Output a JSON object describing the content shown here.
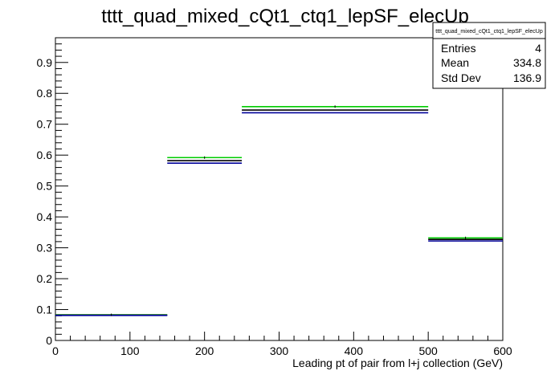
{
  "chart_data": {
    "type": "step",
    "title": "tttt_quad_mixed_cQt1_ctq1_lepSF_elecUp",
    "xlabel": "Leading pt of pair from l+j collection (GeV)",
    "ylabel": "",
    "xlim": [
      0,
      600
    ],
    "ylim": [
      0,
      0.98
    ],
    "xticks": [
      0,
      100,
      200,
      300,
      400,
      500,
      600
    ],
    "xtick_labels": [
      "0",
      "100",
      "200",
      "300",
      "400",
      "500",
      "600"
    ],
    "yticks": [
      0,
      0.1,
      0.2,
      0.3,
      0.4,
      0.5,
      0.6,
      0.7,
      0.8,
      0.9
    ],
    "ytick_labels": [
      "0",
      "0.1",
      "0.2",
      "0.3",
      "0.4",
      "0.5",
      "0.6",
      "0.7",
      "0.8",
      "0.9"
    ],
    "grid": false,
    "bins": [
      {
        "x_low": 0,
        "x_high": 150
      },
      {
        "x_low": 150,
        "x_high": 250
      },
      {
        "x_low": 250,
        "x_high": 500
      },
      {
        "x_low": 500,
        "x_high": 600
      }
    ],
    "series": [
      {
        "color": "#00cc00",
        "values": [
          0.083,
          0.592,
          0.757,
          0.332
        ]
      },
      {
        "color": "#000000",
        "values": [
          0.082,
          0.582,
          0.746,
          0.327
        ]
      },
      {
        "color": "#000099",
        "values": [
          0.081,
          0.574,
          0.737,
          0.322
        ]
      }
    ],
    "stats_box": {
      "title": "tttt_quad_mixed_cQt1_ctq1_lepSF_elecUp",
      "rows": [
        {
          "label": "Entries",
          "value": "4"
        },
        {
          "label": "Mean",
          "value": "334.8"
        },
        {
          "label": "Std Dev",
          "value": "136.9"
        }
      ]
    }
  }
}
